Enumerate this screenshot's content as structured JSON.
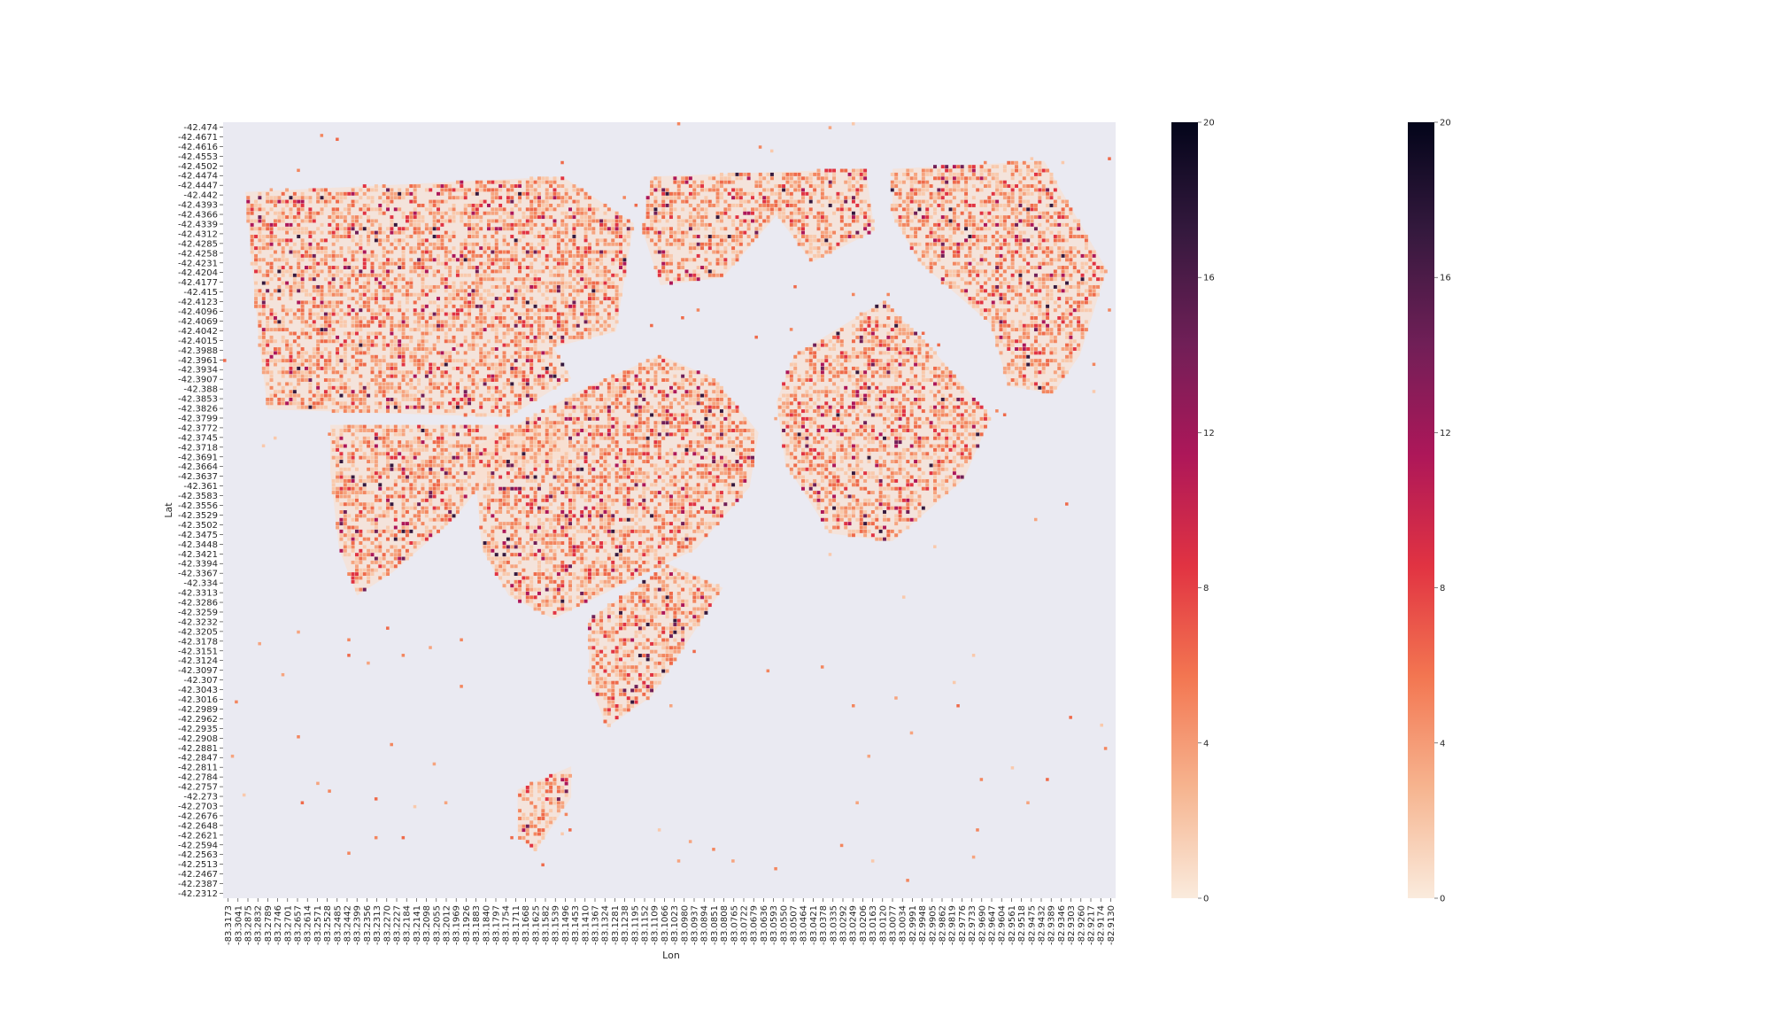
{
  "chart_data": {
    "type": "heatmap",
    "xlabel": "Lon",
    "ylabel": "Lat",
    "x_ticks": [
      "-83.3173",
      "-83.3041",
      "-83.2875",
      "-83.2832",
      "-83.2789",
      "-83.2746",
      "-83.2701",
      "-83.2657",
      "-83.2614",
      "-83.2571",
      "-83.2528",
      "-83.2485",
      "-83.2442",
      "-83.2399",
      "-83.2356",
      "-83.2313",
      "-83.2270",
      "-83.2227",
      "-83.2184",
      "-83.2141",
      "-83.2098",
      "-83.2055",
      "-83.2012",
      "-83.1969",
      "-83.1926",
      "-83.1883",
      "-83.1840",
      "-83.1797",
      "-83.1754",
      "-83.1711",
      "-83.1668",
      "-83.1625",
      "-83.1582",
      "-83.1539",
      "-83.1496",
      "-83.1453",
      "-83.1410",
      "-83.1367",
      "-83.1324",
      "-83.1281",
      "-83.1238",
      "-83.1195",
      "-83.1152",
      "-83.1109",
      "-83.1066",
      "-83.1023",
      "-83.0980",
      "-83.0937",
      "-83.0894",
      "-83.0851",
      "-83.0808",
      "-83.0765",
      "-83.0722",
      "-83.0679",
      "-83.0636",
      "-83.0593",
      "-83.0550",
      "-83.0507",
      "-83.0464",
      "-83.0421",
      "-83.0378",
      "-83.0335",
      "-83.0292",
      "-83.0249",
      "-83.0206",
      "-83.0163",
      "-83.0120",
      "-83.0077",
      "-83.0034",
      "-82.9991",
      "-82.9948",
      "-82.9905",
      "-82.9862",
      "-82.9819",
      "-82.9776",
      "-82.9733",
      "-82.9690",
      "-82.9647",
      "-82.9604",
      "-82.9561",
      "-82.9518",
      "-82.9475",
      "-82.9432",
      "-82.9389",
      "-82.9346",
      "-82.9303",
      "-82.9260",
      "-82.9217",
      "-82.9174",
      "-82.9130"
    ],
    "y_ticks": [
      "-42.474",
      "-42.4671",
      "-42.4616",
      "-42.4553",
      "-42.4502",
      "-42.4474",
      "-42.4447",
      "-42.442",
      "-42.4393",
      "-42.4366",
      "-42.4339",
      "-42.4312",
      "-42.4285",
      "-42.4258",
      "-42.4231",
      "-42.4204",
      "-42.4177",
      "-42.415",
      "-42.4123",
      "-42.4096",
      "-42.4069",
      "-42.4042",
      "-42.4015",
      "-42.3988",
      "-42.3961",
      "-42.3934",
      "-42.3907",
      "-42.388",
      "-42.3853",
      "-42.3826",
      "-42.3799",
      "-42.3772",
      "-42.3745",
      "-42.3718",
      "-42.3691",
      "-42.3664",
      "-42.3637",
      "-42.361",
      "-42.3583",
      "-42.3556",
      "-42.3529",
      "-42.3502",
      "-42.3475",
      "-42.3448",
      "-42.3421",
      "-42.3394",
      "-42.3367",
      "-42.334",
      "-42.3313",
      "-42.3286",
      "-42.3259",
      "-42.3232",
      "-42.3205",
      "-42.3178",
      "-42.3151",
      "-42.3124",
      "-42.3097",
      "-42.307",
      "-42.3043",
      "-42.3016",
      "-42.2989",
      "-42.2962",
      "-42.2935",
      "-42.2908",
      "-42.2881",
      "-42.2847",
      "-42.2811",
      "-42.2784",
      "-42.2757",
      "-42.273",
      "-42.2703",
      "-42.2676",
      "-42.2648",
      "-42.2621",
      "-42.2594",
      "-42.2563",
      "-42.2513",
      "-42.2467",
      "-42.2387",
      "-42.2312"
    ],
    "colorbar": {
      "min": 0,
      "max": 20,
      "ticks": [
        "0",
        "4",
        "8",
        "12",
        "16",
        "20"
      ]
    },
    "colorbars_count": 2,
    "values_note_omitted": true,
    "colormap": [
      "#faebdd",
      "#f6b48f",
      "#f37651",
      "#e13342",
      "#ad1759",
      "#701f57",
      "#35193e",
      "#03051a"
    ],
    "background_color": "#eaeaf2",
    "grid": false
  }
}
